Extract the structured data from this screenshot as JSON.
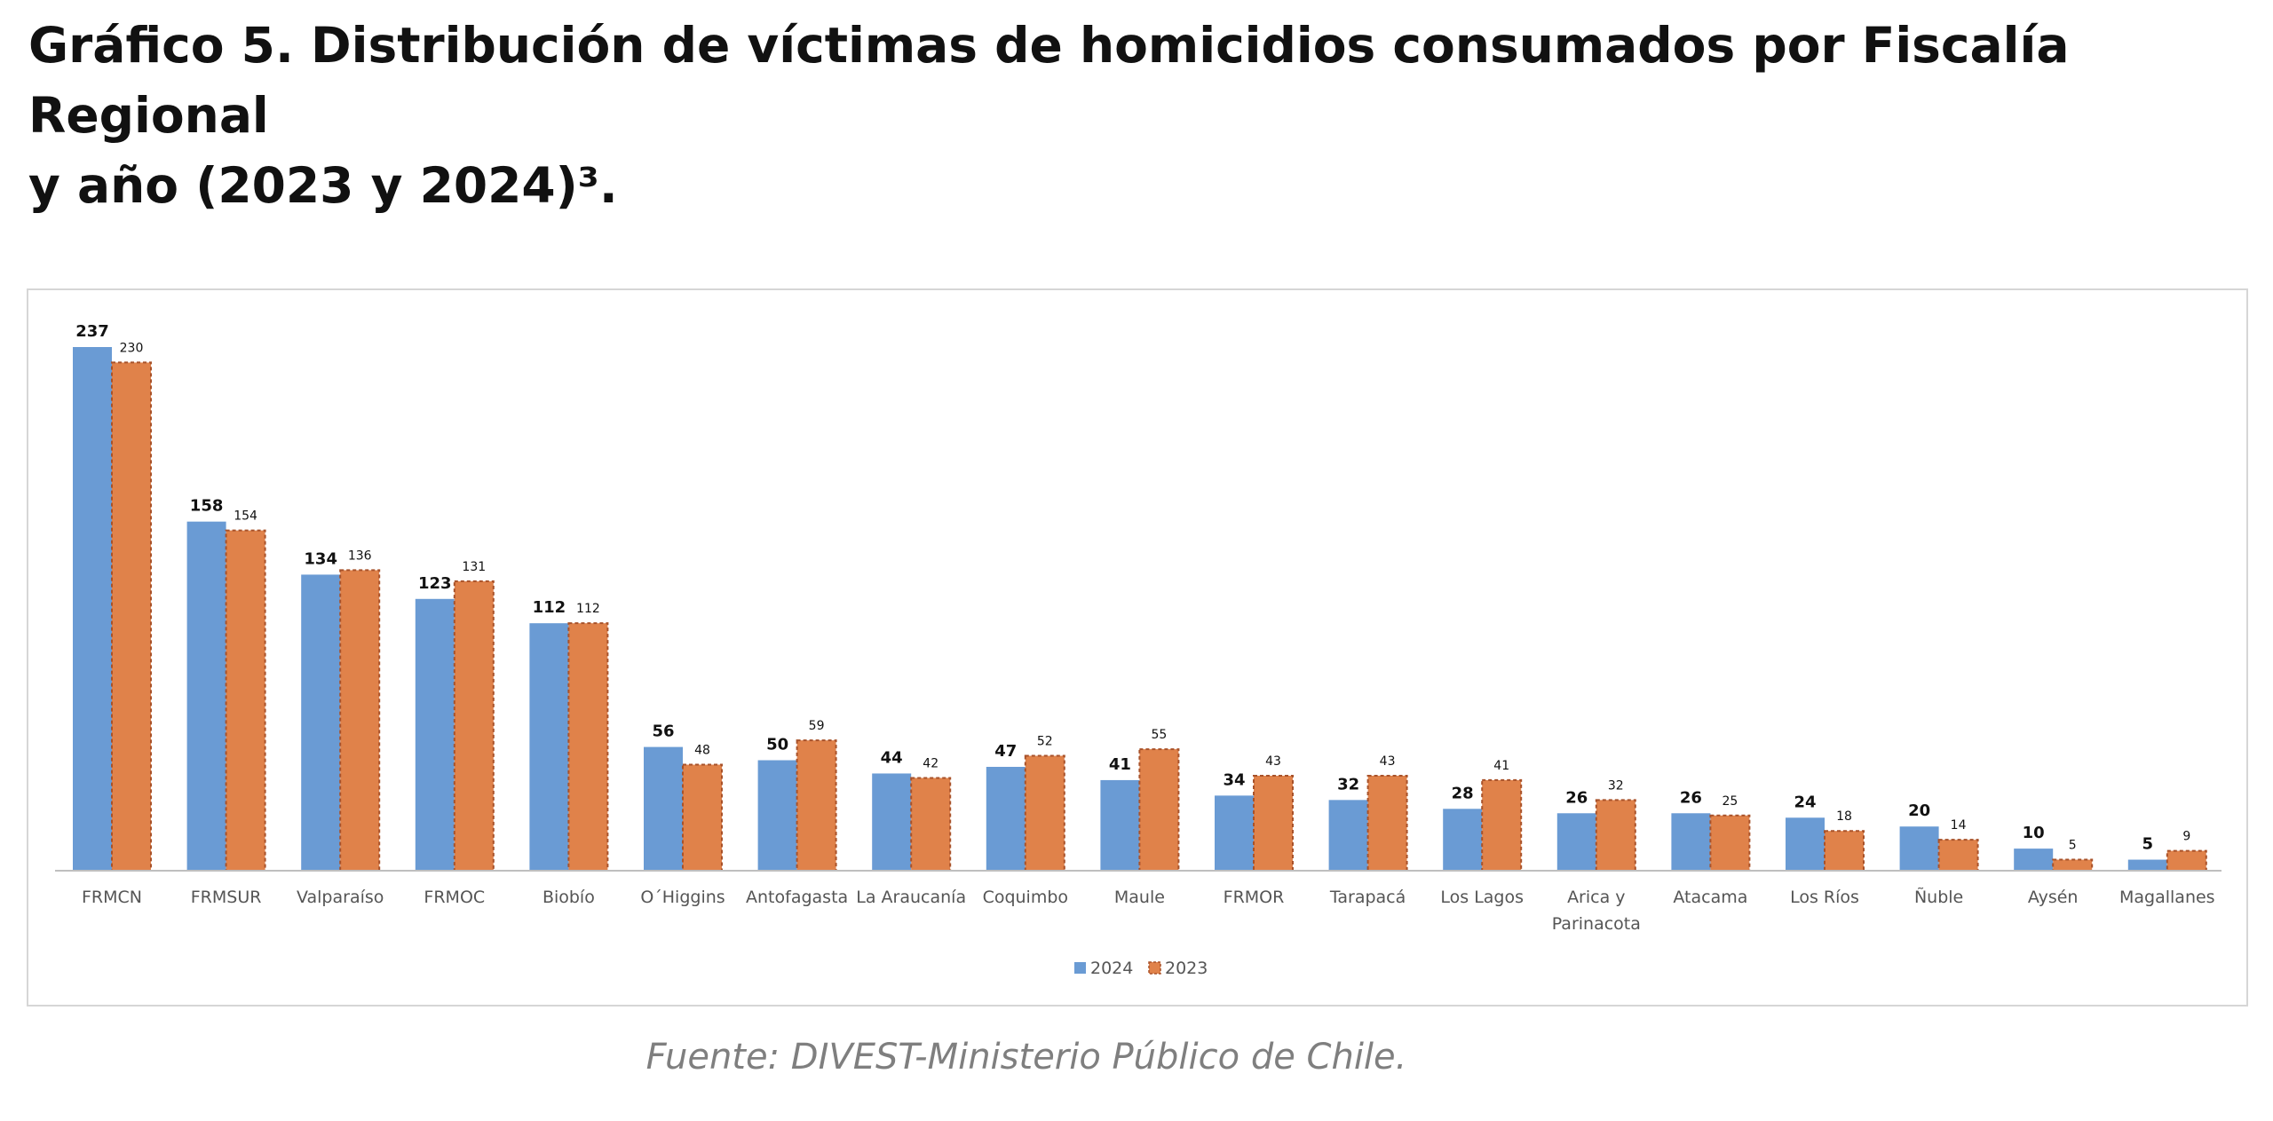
{
  "page": {
    "title_line1": "Gráfico 5. Distribución de víctimas de homicidios consumados por Fiscalía Regional",
    "title_line2": "y año (2023 y 2024)³.",
    "source": "Fuente: DIVEST-Ministerio Público de Chile."
  },
  "colors": {
    "series_2024": "#6a9bd4",
    "series_2023": "#e0824a",
    "series_2023_border": "#a8522a",
    "axis": "#bfbfbf",
    "label_text": "#111111",
    "tick_text": "#555555"
  },
  "chart_data": {
    "type": "bar",
    "title": "",
    "xlabel": "",
    "ylabel": "",
    "ylim": [
      0,
      250
    ],
    "grid": false,
    "legend_position": "bottom-center",
    "categories": [
      "FRMCN",
      "FRMSUR",
      "Valparaíso",
      "FRMOC",
      "Biobío",
      "O´Higgins",
      "Antofagasta",
      "La Araucanía",
      "Coquimbo",
      "Maule",
      "FRMOR",
      "Tarapacá",
      "Los Lagos",
      "Arica y Parinacota",
      "Atacama",
      "Los Ríos",
      "Ñuble",
      "Aysén",
      "Magallanes"
    ],
    "tick_labels": [
      [
        "FRMCN"
      ],
      [
        "FRMSUR"
      ],
      [
        "Valparaíso"
      ],
      [
        "FRMOC"
      ],
      [
        "Biobío"
      ],
      [
        "O´Higgins"
      ],
      [
        "Antofagasta"
      ],
      [
        "La Araucanía"
      ],
      [
        "Coquimbo"
      ],
      [
        "Maule"
      ],
      [
        "FRMOR"
      ],
      [
        "Tarapacá"
      ],
      [
        "Los Lagos"
      ],
      [
        "Arica y",
        "Parinacota"
      ],
      [
        "Atacama"
      ],
      [
        "Los Ríos"
      ],
      [
        "Ñuble"
      ],
      [
        "Aysén"
      ],
      [
        "Magallanes"
      ]
    ],
    "series": [
      {
        "name": "2024",
        "values": [
          237,
          158,
          134,
          123,
          112,
          56,
          50,
          44,
          47,
          41,
          34,
          32,
          28,
          26,
          26,
          24,
          20,
          10,
          5
        ]
      },
      {
        "name": "2023",
        "values": [
          230,
          154,
          136,
          131,
          112,
          48,
          59,
          42,
          52,
          55,
          43,
          43,
          41,
          32,
          25,
          18,
          14,
          5,
          9
        ]
      }
    ]
  }
}
